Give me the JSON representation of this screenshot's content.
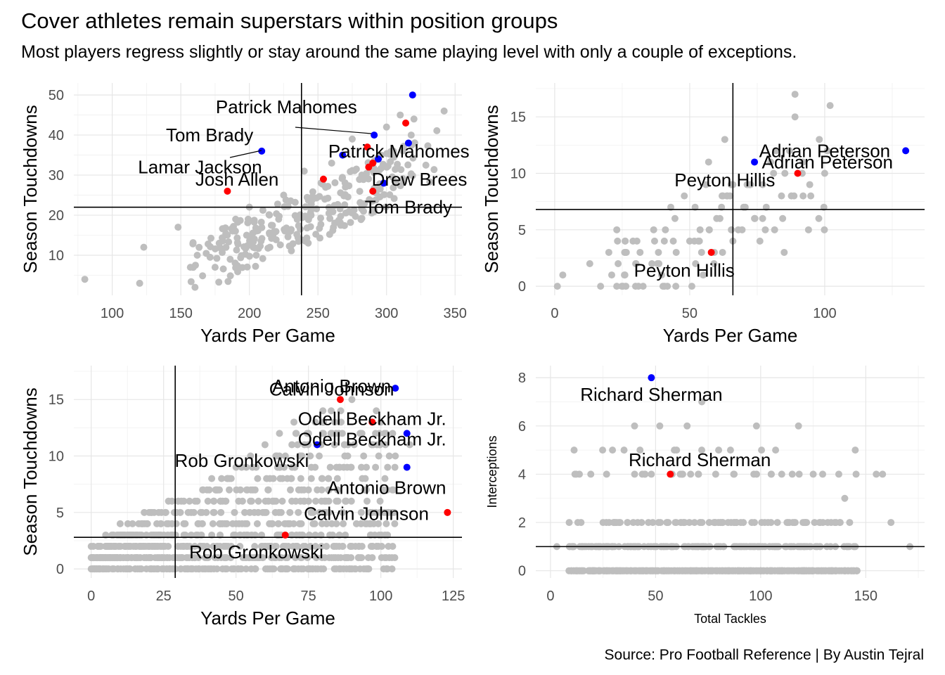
{
  "title": "Cover athletes remain superstars within position groups",
  "subtitle": "Most players regress slightly or stay around the same playing level with only a couple of exceptions.",
  "caption": "Source: Pro Football Reference | By Austin Tejral",
  "colors": {
    "background_points": "#bebebe",
    "cover_year": "#0000ff",
    "following_year": "#ff0000",
    "reference_lines": "#000000"
  },
  "chart_data": [
    {
      "type": "scatter",
      "panel": "quarterbacks",
      "xlabel": "Yards Per Game",
      "ylabel": "Season Touchdowns",
      "xlim": [
        72,
        355
      ],
      "ylim": [
        0,
        53
      ],
      "xticks": [
        100,
        150,
        200,
        250,
        300,
        350
      ],
      "yticks": [
        10,
        20,
        30,
        40,
        50
      ],
      "vline": 238,
      "hline": 22,
      "background_seed": 11,
      "background_count": 260,
      "background_points": [
        [
          80,
          4
        ],
        [
          120,
          3
        ],
        [
          123,
          12
        ],
        [
          148,
          17
        ],
        [
          157,
          7
        ],
        [
          162,
          10
        ],
        [
          178,
          13
        ],
        [
          190,
          19
        ],
        [
          200,
          22
        ],
        [
          225,
          25
        ],
        [
          240,
          31
        ],
        [
          260,
          33
        ],
        [
          275,
          39
        ],
        [
          300,
          42
        ],
        [
          310,
          45
        ],
        [
          320,
          44
        ],
        [
          342,
          46
        ],
        [
          318,
          40
        ],
        [
          305,
          36
        ],
        [
          296,
          35
        ],
        [
          282,
          30
        ],
        [
          270,
          27
        ],
        [
          255,
          24
        ],
        [
          245,
          20
        ],
        [
          230,
          16
        ],
        [
          215,
          12
        ],
        [
          205,
          10
        ],
        [
          198,
          15
        ],
        [
          186,
          9
        ],
        [
          175,
          7
        ]
      ],
      "highlighted": [
        {
          "name": "Patrick Mahomes",
          "x": 319,
          "y": 50,
          "group": "cover"
        },
        {
          "name": "Tom Brady",
          "x": 291,
          "y": 40,
          "group": "cover"
        },
        {
          "name": "Lamar Jackson",
          "x": 209,
          "y": 36,
          "group": "cover"
        },
        {
          "name": "Patrick Mahomes",
          "x": 268,
          "y": 35,
          "group": "cover"
        },
        {
          "name": "Drew Brees",
          "x": 294,
          "y": 34,
          "group": "cover"
        },
        {
          "name": "",
          "x": 316,
          "y": 38,
          "group": "cover"
        },
        {
          "name": "",
          "x": 298,
          "y": 28,
          "group": "cover"
        },
        {
          "name": "",
          "x": 314,
          "y": 43,
          "group": "following"
        },
        {
          "name": "",
          "x": 286,
          "y": 37,
          "group": "following"
        },
        {
          "name": "",
          "x": 287,
          "y": 32,
          "group": "following"
        },
        {
          "name": "",
          "x": 290,
          "y": 33,
          "group": "following"
        },
        {
          "name": "Josh Allen",
          "x": 254,
          "y": 29,
          "group": "following"
        },
        {
          "name": "Tom Brady",
          "x": 290,
          "y": 26,
          "group": "following"
        },
        {
          "name": "",
          "x": 184,
          "y": 26,
          "group": "following"
        }
      ],
      "labels": [
        {
          "text": "Patrick Mahomes",
          "x": 227,
          "y": 47
        },
        {
          "text": "Tom Brady",
          "x": 171,
          "y": 40
        },
        {
          "text": "Lamar Jackson",
          "x": 164,
          "y": 32
        },
        {
          "text": "Patrick Mahomes",
          "x": 309,
          "y": 36
        },
        {
          "text": "Josh Allen",
          "x": 191,
          "y": 29
        },
        {
          "text": "Drew Brees",
          "x": 324,
          "y": 29
        },
        {
          "text": "Tom Brady",
          "x": 316,
          "y": 22
        }
      ]
    },
    {
      "type": "scatter",
      "panel": "running_backs",
      "xlabel": "Yards Per Game",
      "ylabel": "Season Touchdowns",
      "xlim": [
        -7,
        137
      ],
      "ylim": [
        -0.8,
        18
      ],
      "xticks": [
        0,
        50,
        100
      ],
      "yticks": [
        0,
        5,
        10,
        15
      ],
      "vline": 66,
      "hline": 6.8,
      "background_seed": 23,
      "background_count": 70,
      "background_points": [
        [
          1,
          0
        ],
        [
          3,
          1
        ],
        [
          13,
          2
        ],
        [
          17,
          0
        ],
        [
          23,
          5
        ],
        [
          29,
          4
        ],
        [
          37,
          4
        ],
        [
          41,
          5
        ],
        [
          45,
          3
        ],
        [
          48,
          8
        ],
        [
          52,
          7
        ],
        [
          56,
          9
        ],
        [
          60,
          6
        ],
        [
          62,
          8
        ],
        [
          63,
          13
        ],
        [
          66,
          4
        ],
        [
          70,
          7
        ],
        [
          74,
          6
        ],
        [
          76,
          4
        ],
        [
          80,
          11
        ],
        [
          82,
          12
        ],
        [
          85,
          3
        ],
        [
          87,
          12
        ],
        [
          89,
          17
        ],
        [
          89,
          15
        ],
        [
          92,
          8
        ],
        [
          94,
          5
        ],
        [
          98,
          13
        ],
        [
          100,
          10
        ],
        [
          102,
          16
        ],
        [
          101,
          12
        ],
        [
          92,
          11
        ],
        [
          68,
          5
        ],
        [
          64,
          8
        ],
        [
          57,
          11
        ],
        [
          50,
          4
        ],
        [
          43,
          7
        ],
        [
          36,
          2
        ],
        [
          30,
          2
        ],
        [
          26,
          1
        ],
        [
          55,
          1
        ],
        [
          59,
          2
        ],
        [
          66,
          9
        ],
        [
          78,
          5
        ],
        [
          84,
          8
        ]
      ],
      "highlighted": [
        {
          "name": "Adrian Peterson",
          "x": 130,
          "y": 12,
          "group": "cover"
        },
        {
          "name": "Peyton Hillis",
          "x": 74,
          "y": 11,
          "group": "cover"
        },
        {
          "name": "Adrian Peterson",
          "x": 90,
          "y": 10,
          "group": "following"
        },
        {
          "name": "Peyton Hillis",
          "x": 58,
          "y": 3,
          "group": "following"
        }
      ],
      "labels": [
        {
          "text": "Adrian Peterson",
          "x": 100,
          "y": 12
        },
        {
          "text": "Adrian Peterson",
          "x": 101,
          "y": 11
        },
        {
          "text": "Peyton Hillis",
          "x": 63,
          "y": 9.4
        },
        {
          "text": "Peyton Hillis",
          "x": 48,
          "y": 1.4
        }
      ]
    },
    {
      "type": "scatter",
      "panel": "pass_catchers",
      "xlabel": "Yards Per Game",
      "ylabel": "Season Touchdowns",
      "xlim": [
        -6,
        128
      ],
      "ylim": [
        -0.8,
        18
      ],
      "xticks": [
        0,
        25,
        50,
        75,
        100,
        125
      ],
      "yticks": [
        0,
        5,
        10,
        15
      ],
      "vline": 29,
      "hline": 2.8,
      "background_seed": 37,
      "background_count": 900,
      "background_points": [
        [
          0,
          0
        ],
        [
          0,
          1
        ],
        [
          0,
          2
        ],
        [
          5,
          3
        ],
        [
          10,
          4
        ],
        [
          20,
          5
        ],
        [
          30,
          6
        ],
        [
          40,
          7
        ],
        [
          45,
          8
        ],
        [
          50,
          9
        ],
        [
          55,
          10
        ],
        [
          60,
          11
        ],
        [
          65,
          12
        ],
        [
          70,
          13
        ],
        [
          80,
          14
        ],
        [
          90,
          15
        ],
        [
          100,
          13
        ],
        [
          110,
          11
        ],
        [
          105,
          10
        ],
        [
          95,
          9
        ],
        [
          85,
          8
        ],
        [
          75,
          7
        ]
      ],
      "highlighted": [
        {
          "name": "Antonio Brown",
          "x": 105,
          "y": 16,
          "group": "cover"
        },
        {
          "name": "Odell Beckham Jr.",
          "x": 109,
          "y": 12,
          "group": "cover"
        },
        {
          "name": "Rob Gronkowski",
          "x": 78,
          "y": 11,
          "group": "cover"
        },
        {
          "name": "Calvin Johnson",
          "x": 109,
          "y": 9,
          "group": "cover"
        },
        {
          "name": "Calvin Johnson",
          "x": 86,
          "y": 15,
          "group": "following"
        },
        {
          "name": "Odell Beckham Jr.",
          "x": 97,
          "y": 13,
          "group": "following"
        },
        {
          "name": "Antonio Brown",
          "x": 123,
          "y": 5,
          "group": "following"
        },
        {
          "name": "Rob Gronkowski",
          "x": 67,
          "y": 3,
          "group": "following"
        }
      ],
      "labels": [
        {
          "text": "Antonio Brown",
          "x": 83,
          "y": 16.2
        },
        {
          "text": "Calvin Johnson",
          "x": 83,
          "y": 15.9
        },
        {
          "text": "Odell Beckham Jr.",
          "x": 97,
          "y": 13.3
        },
        {
          "text": "Odell Beckham Jr.",
          "x": 97,
          "y": 11.5
        },
        {
          "text": "Rob Gronkowski",
          "x": 52,
          "y": 9.6
        },
        {
          "text": "Antonio Brown",
          "x": 102,
          "y": 7.2
        },
        {
          "text": "Calvin Johnson",
          "x": 95,
          "y": 4.9
        },
        {
          "text": "Rob Gronkowski",
          "x": 57,
          "y": 1.5
        }
      ]
    },
    {
      "type": "scatter",
      "panel": "defensive_backs",
      "xlabel": "Total Tackles",
      "ylabel": "Interceptions",
      "xlim": [
        -7,
        178
      ],
      "ylim": [
        -0.3,
        8.5
      ],
      "xticks": [
        0,
        50,
        100,
        150
      ],
      "yticks": [
        0,
        2,
        4,
        6,
        8
      ],
      "vline": null,
      "hline": 1,
      "background_seed": 53,
      "background_count": 650,
      "background_points": [
        [
          3,
          1
        ],
        [
          10,
          0
        ],
        [
          15,
          1
        ],
        [
          20,
          0
        ],
        [
          30,
          2
        ],
        [
          35,
          5
        ],
        [
          40,
          6
        ],
        [
          45,
          4
        ],
        [
          52,
          6
        ],
        [
          60,
          5
        ],
        [
          65,
          6
        ],
        [
          72,
          7
        ],
        [
          80,
          5
        ],
        [
          98,
          6
        ],
        [
          105,
          4
        ],
        [
          118,
          6
        ],
        [
          125,
          4
        ],
        [
          140,
          3
        ],
        [
          145,
          5
        ],
        [
          155,
          4
        ],
        [
          158,
          4
        ],
        [
          162,
          2
        ],
        [
          171,
          1
        ],
        [
          140,
          0
        ],
        [
          120,
          0
        ],
        [
          100,
          0
        ]
      ],
      "highlighted": [
        {
          "name": "Richard Sherman",
          "x": 48,
          "y": 8,
          "group": "cover"
        },
        {
          "name": "Richard Sherman",
          "x": 57,
          "y": 4,
          "group": "following"
        }
      ],
      "labels": [
        {
          "text": "Richard Sherman",
          "x": 48,
          "y": 7.3
        },
        {
          "text": "Richard Sherman",
          "x": 71,
          "y": 4.6
        }
      ]
    }
  ]
}
